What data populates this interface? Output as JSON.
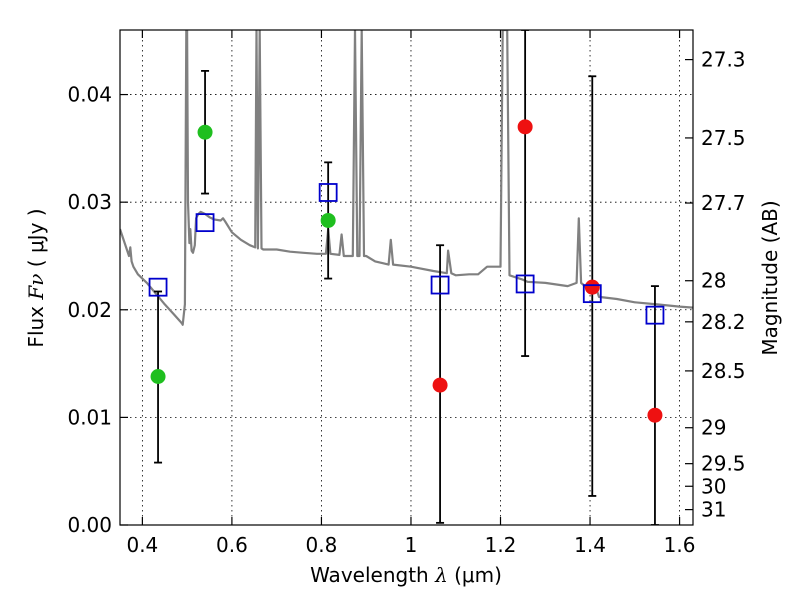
{
  "chart_data": {
    "type": "scatter",
    "xlabel": "Wavelength",
    "xlabel_symbol": "λ",
    "xlabel_unit": "(μm)",
    "ylabel": "Flux",
    "ylabel_symbol": "Fν",
    "ylabel_unit": "( μJy )",
    "ylabel_right": "Magnitude (AB)",
    "xlim": [
      0.35,
      1.63
    ],
    "ylim": [
      0.0,
      0.046
    ],
    "grid": true,
    "x_ticks": [
      0.4,
      0.6,
      0.8,
      1.0,
      1.2,
      1.4,
      1.6
    ],
    "x_tick_labels": [
      "0.4",
      "0.6",
      "0.8",
      "1",
      "1.2",
      "1.4",
      "1.6"
    ],
    "y_ticks": [
      0.0,
      0.01,
      0.02,
      0.03,
      0.04
    ],
    "y_tick_labels": [
      "0.00",
      "0.01",
      "0.02",
      "0.03",
      "0.04"
    ],
    "right_ticks": [
      {
        "label": "27.3",
        "flux": 0.04325
      },
      {
        "label": "27.5",
        "flux": 0.03597
      },
      {
        "label": "27.7",
        "flux": 0.02992
      },
      {
        "label": "28",
        "flux": 0.0227
      },
      {
        "label": "28.2",
        "flux": 0.01888
      },
      {
        "label": "28.5",
        "flux": 0.01432
      },
      {
        "label": "29",
        "flux": 0.00904
      },
      {
        "label": "29.5",
        "flux": 0.0057
      },
      {
        "label": "30",
        "flux": 0.0036
      },
      {
        "label": "31",
        "flux": 0.00143
      }
    ],
    "series": [
      {
        "name": "model SED",
        "kind": "line",
        "color": "#808080",
        "x": [
          0.35,
          0.37,
          0.373,
          0.376,
          0.38,
          0.39,
          0.41,
          0.43,
          0.45,
          0.47,
          0.485,
          0.487,
          0.489,
          0.49,
          0.495,
          0.498,
          0.5,
          0.502,
          0.505,
          0.507,
          0.51,
          0.513,
          0.517,
          0.52,
          0.525,
          0.53,
          0.54,
          0.55,
          0.56,
          0.575,
          0.58,
          0.585,
          0.6,
          0.62,
          0.64,
          0.652,
          0.655,
          0.658,
          0.662,
          0.666,
          0.67,
          0.7,
          0.73,
          0.76,
          0.79,
          0.81,
          0.815,
          0.82,
          0.84,
          0.845,
          0.85,
          0.86,
          0.87,
          0.875,
          0.88,
          0.885,
          0.89,
          0.895,
          0.9,
          0.92,
          0.95,
          0.955,
          0.96,
          1.0,
          1.05,
          1.08,
          1.083,
          1.09,
          1.1,
          1.13,
          1.15,
          1.17,
          1.2,
          1.205,
          1.21,
          1.215,
          1.22,
          1.25,
          1.26,
          1.3,
          1.35,
          1.37,
          1.375,
          1.38,
          1.4,
          1.41,
          1.42,
          1.46,
          1.5,
          1.55,
          1.6,
          1.63
        ],
        "y": [
          0.0275,
          0.025,
          0.0258,
          0.0245,
          0.024,
          0.0233,
          0.0225,
          0.0215,
          0.0205,
          0.0196,
          0.0189,
          0.0188,
          0.0187,
          0.0186,
          0.0205,
          0.046,
          0.046,
          0.03,
          0.0262,
          0.0275,
          0.0255,
          0.0253,
          0.026,
          0.0285,
          0.0289,
          0.0291,
          0.0289,
          0.0286,
          0.0284,
          0.0283,
          0.0285,
          0.0282,
          0.0272,
          0.0265,
          0.026,
          0.0258,
          0.046,
          0.0257,
          0.046,
          0.0257,
          0.0256,
          0.0256,
          0.0254,
          0.0253,
          0.0252,
          0.0252,
          0.0275,
          0.0252,
          0.0251,
          0.027,
          0.025,
          0.025,
          0.025,
          0.046,
          0.025,
          0.025,
          0.046,
          0.025,
          0.025,
          0.0245,
          0.0242,
          0.0265,
          0.0242,
          0.024,
          0.0236,
          0.0234,
          0.0255,
          0.0234,
          0.0232,
          0.0233,
          0.0233,
          0.024,
          0.024,
          0.046,
          0.046,
          0.046,
          0.0232,
          0.0228,
          0.0226,
          0.0225,
          0.0222,
          0.0225,
          0.0285,
          0.0225,
          0.0218,
          0.0225,
          0.0212,
          0.021,
          0.0207,
          0.0205,
          0.0203,
          0.0202
        ]
      },
      {
        "name": "green points",
        "kind": "points",
        "color": "#1fbf1f",
        "x": [
          0.435,
          0.54,
          0.815
        ],
        "y": [
          0.0138,
          0.0365,
          0.0283
        ]
      },
      {
        "name": "red points",
        "kind": "points",
        "color": "#ee1111",
        "x": [
          1.065,
          1.255,
          1.405,
          1.545
        ],
        "y": [
          0.013,
          0.037,
          0.0221,
          0.0102
        ]
      },
      {
        "name": "model photometry",
        "kind": "open-squares",
        "color": "#0000cc",
        "x": [
          0.435,
          0.54,
          0.815,
          1.065,
          1.255,
          1.405,
          1.545
        ],
        "y": [
          0.0221,
          0.0281,
          0.0309,
          0.0223,
          0.0224,
          0.0215,
          0.0195
        ]
      }
    ],
    "error_bars": [
      {
        "x": 0.435,
        "low": 0.0058,
        "high": 0.0217
      },
      {
        "x": 0.54,
        "low": 0.0308,
        "high": 0.0422
      },
      {
        "x": 0.815,
        "low": 0.0229,
        "high": 0.0337
      },
      {
        "x": 1.065,
        "low": 0.0002,
        "high": 0.026
      },
      {
        "x": 1.255,
        "low": 0.0157,
        "high": 0.046
      },
      {
        "x": 1.405,
        "low": 0.0027,
        "high": 0.0417
      },
      {
        "x": 1.545,
        "low": 0.0,
        "high": 0.0222
      }
    ]
  }
}
